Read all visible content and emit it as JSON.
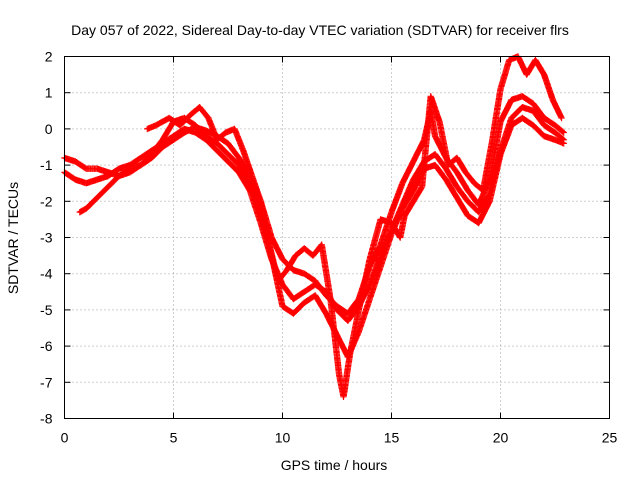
{
  "chart_data": {
    "type": "scatter",
    "title": "Day 057 of 2022, Sidereal Day-to-day VTEC variation (SDTVAR) for receiver flrs",
    "xlabel": "GPS time / hours",
    "ylabel": "SDTVAR / TECUs",
    "xlim": [
      0,
      25
    ],
    "ylim": [
      -8,
      2
    ],
    "xticks": [
      0,
      5,
      10,
      15,
      20,
      25
    ],
    "yticks": [
      -8,
      -7,
      -6,
      -5,
      -4,
      -3,
      -2,
      -1,
      0,
      1,
      2
    ],
    "grid": true,
    "marker": "+",
    "color": "#ff0000",
    "series": [
      {
        "points": [
          [
            0.0,
            -0.8
          ],
          [
            0.5,
            -0.9
          ],
          [
            1.0,
            -1.1
          ],
          [
            1.5,
            -1.1
          ],
          [
            2.0,
            -1.2
          ],
          [
            2.5,
            -1.3
          ],
          [
            3.0,
            -1.2
          ],
          [
            3.5,
            -1.0
          ],
          [
            4.0,
            -0.8
          ],
          [
            4.5,
            -0.5
          ],
          [
            5.0,
            -0.3
          ],
          [
            5.5,
            -0.1
          ],
          [
            6.0,
            0.05
          ],
          [
            6.5,
            -0.05
          ],
          [
            7.0,
            -0.2
          ],
          [
            7.5,
            -0.4
          ],
          [
            8.0,
            -0.8
          ],
          [
            8.5,
            -1.3
          ],
          [
            9.0,
            -2.0
          ],
          [
            9.5,
            -3.0
          ],
          [
            10.0,
            -3.6
          ],
          [
            10.5,
            -3.9
          ],
          [
            11.0,
            -4.0
          ],
          [
            11.5,
            -4.2
          ],
          [
            12.0,
            -4.6
          ],
          [
            12.5,
            -4.9
          ],
          [
            13.0,
            -5.1
          ],
          [
            13.5,
            -4.7
          ],
          [
            14.0,
            -3.8
          ],
          [
            14.5,
            -3.2
          ],
          [
            15.0,
            -2.3
          ],
          [
            15.5,
            -1.5
          ],
          [
            16.0,
            -0.9
          ],
          [
            16.5,
            -0.3
          ],
          [
            16.8,
            0.5
          ],
          [
            17.0,
            -0.2
          ],
          [
            17.5,
            -0.8
          ],
          [
            18.0,
            -1.2
          ],
          [
            18.5,
            -1.7
          ],
          [
            19.0,
            -2.1
          ],
          [
            19.5,
            -1.4
          ],
          [
            20.0,
            0.2
          ],
          [
            20.5,
            0.8
          ],
          [
            21.0,
            0.9
          ],
          [
            21.5,
            0.7
          ],
          [
            22.0,
            0.3
          ],
          [
            22.5,
            0.1
          ],
          [
            22.9,
            -0.1
          ]
        ]
      },
      {
        "points": [
          [
            0.0,
            -1.2
          ],
          [
            0.5,
            -1.4
          ],
          [
            1.0,
            -1.5
          ],
          [
            1.5,
            -1.4
          ],
          [
            2.0,
            -1.3
          ],
          [
            2.5,
            -1.1
          ],
          [
            3.0,
            -1.0
          ],
          [
            3.5,
            -0.8
          ],
          [
            4.0,
            -0.6
          ],
          [
            4.5,
            -0.4
          ],
          [
            5.0,
            -0.2
          ],
          [
            5.5,
            0.0
          ],
          [
            6.0,
            -0.1
          ],
          [
            6.5,
            -0.3
          ],
          [
            7.0,
            -0.6
          ],
          [
            7.5,
            -0.9
          ],
          [
            8.0,
            -1.2
          ],
          [
            8.5,
            -1.7
          ],
          [
            9.0,
            -2.6
          ],
          [
            9.5,
            -3.6
          ],
          [
            10.0,
            -4.3
          ],
          [
            10.5,
            -4.7
          ],
          [
            11.0,
            -4.5
          ],
          [
            11.5,
            -4.3
          ],
          [
            12.0,
            -4.5
          ],
          [
            12.5,
            -5.0
          ],
          [
            13.0,
            -5.3
          ],
          [
            13.5,
            -4.9
          ],
          [
            14.0,
            -4.3
          ],
          [
            14.5,
            -3.5
          ],
          [
            15.0,
            -2.8
          ],
          [
            15.5,
            -2.1
          ],
          [
            16.0,
            -1.4
          ],
          [
            16.5,
            -0.9
          ],
          [
            17.0,
            -0.7
          ],
          [
            17.5,
            -1.1
          ],
          [
            18.0,
            -1.6
          ],
          [
            18.5,
            -2.0
          ],
          [
            19.0,
            -2.3
          ],
          [
            19.5,
            -1.8
          ],
          [
            20.0,
            -0.6
          ],
          [
            20.5,
            0.3
          ],
          [
            21.0,
            0.6
          ],
          [
            21.5,
            0.5
          ],
          [
            22.0,
            0.1
          ],
          [
            22.5,
            -0.1
          ],
          [
            22.9,
            -0.3
          ]
        ]
      },
      {
        "points": [
          [
            0.7,
            -2.3
          ],
          [
            1.0,
            -2.2
          ],
          [
            1.5,
            -1.9
          ],
          [
            2.0,
            -1.6
          ],
          [
            2.5,
            -1.3
          ],
          [
            3.0,
            -1.1
          ],
          [
            3.5,
            -1.0
          ],
          [
            4.0,
            -0.7
          ],
          [
            4.5,
            -0.3
          ],
          [
            5.0,
            0.2
          ],
          [
            5.5,
            0.3
          ],
          [
            6.0,
            0.1
          ],
          [
            6.5,
            -0.2
          ],
          [
            7.0,
            -0.4
          ],
          [
            7.5,
            -0.7
          ],
          [
            8.0,
            -1.0
          ],
          [
            8.5,
            -1.5
          ],
          [
            9.0,
            -2.3
          ],
          [
            9.5,
            -3.5
          ],
          [
            10.0,
            -4.9
          ],
          [
            10.5,
            -5.1
          ],
          [
            11.0,
            -4.8
          ],
          [
            11.5,
            -4.6
          ],
          [
            12.0,
            -5.1
          ],
          [
            12.5,
            -5.7
          ],
          [
            13.0,
            -6.3
          ],
          [
            13.5,
            -5.6
          ],
          [
            14.0,
            -4.7
          ],
          [
            14.5,
            -3.8
          ],
          [
            15.0,
            -2.9
          ],
          [
            15.5,
            -2.2
          ],
          [
            16.0,
            -1.7
          ],
          [
            16.5,
            -1.1
          ],
          [
            17.0,
            -1.0
          ],
          [
            17.5,
            -1.4
          ],
          [
            18.0,
            -1.9
          ],
          [
            18.5,
            -2.4
          ],
          [
            19.0,
            -2.6
          ],
          [
            19.5,
            -2.0
          ],
          [
            20.0,
            -0.7
          ],
          [
            20.5,
            0.1
          ],
          [
            21.0,
            0.3
          ],
          [
            21.5,
            0.1
          ],
          [
            22.0,
            -0.2
          ],
          [
            22.5,
            -0.3
          ],
          [
            22.9,
            -0.4
          ]
        ]
      },
      {
        "points": [
          [
            3.8,
            0.0
          ],
          [
            4.2,
            0.1
          ],
          [
            4.8,
            0.3
          ],
          [
            5.3,
            0.1
          ],
          [
            5.8,
            0.4
          ],
          [
            6.2,
            0.6
          ],
          [
            6.6,
            0.3
          ],
          [
            7.0,
            -0.3
          ],
          [
            7.4,
            -0.1
          ],
          [
            7.8,
            0.0
          ],
          [
            8.2,
            -0.6
          ],
          [
            8.6,
            -1.3
          ],
          [
            9.0,
            -2.0
          ],
          [
            9.4,
            -3.2
          ],
          [
            9.8,
            -4.2
          ],
          [
            10.2,
            -3.9
          ],
          [
            10.6,
            -3.5
          ],
          [
            11.0,
            -3.3
          ],
          [
            11.4,
            -3.5
          ],
          [
            11.8,
            -3.2
          ],
          [
            12.2,
            -4.7
          ],
          [
            12.6,
            -6.8
          ],
          [
            12.8,
            -7.4
          ],
          [
            13.1,
            -6.2
          ],
          [
            13.5,
            -5.0
          ],
          [
            14.0,
            -3.6
          ],
          [
            14.5,
            -2.5
          ],
          [
            15.0,
            -2.6
          ],
          [
            15.4,
            -3.0
          ],
          [
            15.6,
            -2.4
          ],
          [
            16.0,
            -2.0
          ],
          [
            16.4,
            -1.6
          ],
          [
            16.8,
            0.9
          ],
          [
            17.2,
            0.2
          ],
          [
            17.6,
            -1.0
          ],
          [
            18.0,
            -0.8
          ],
          [
            18.4,
            -1.2
          ],
          [
            18.8,
            -1.5
          ],
          [
            19.2,
            -1.7
          ],
          [
            19.6,
            -0.4
          ],
          [
            20.0,
            1.1
          ],
          [
            20.4,
            1.9
          ],
          [
            20.8,
            2.0
          ],
          [
            21.2,
            1.5
          ],
          [
            21.6,
            1.9
          ],
          [
            22.0,
            1.5
          ],
          [
            22.4,
            0.8
          ],
          [
            22.8,
            0.3
          ]
        ]
      }
    ]
  }
}
